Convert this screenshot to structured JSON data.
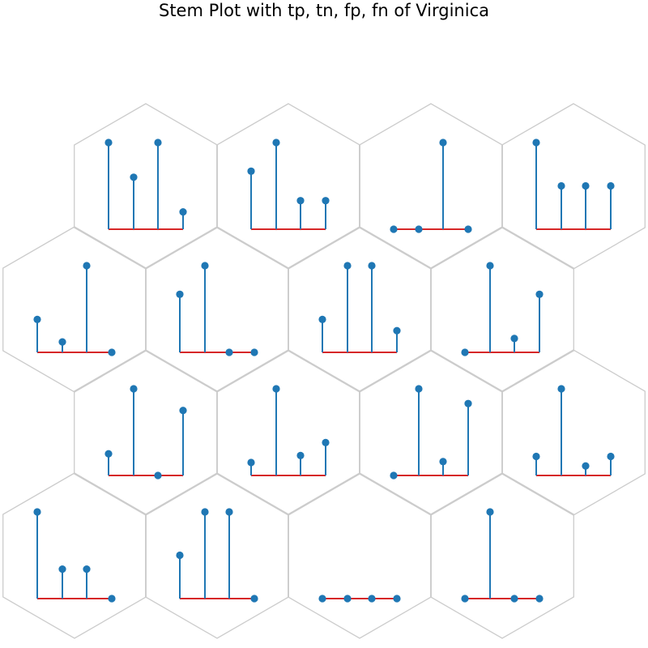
{
  "chart_data": {
    "type": "stem",
    "title": "Stem Plot with tp, tn, fp, fn of Virginica",
    "stem_color": "#1f77b4",
    "baseline_color": "#d62728",
    "hex_edge_color": "#cccccc",
    "points_per_cell": 4,
    "cells": [
      {
        "values": [
          1.0,
          0.6,
          1.0,
          0.2
        ]
      },
      {
        "values": [
          0.67,
          1.0,
          0.33,
          0.33
        ]
      },
      {
        "values": [
          0.0,
          0.0,
          1.0,
          0.0
        ]
      },
      {
        "values": [
          1.0,
          0.5,
          0.5,
          0.5
        ]
      },
      {
        "values": [
          0.38,
          0.12,
          1.0,
          0.0
        ]
      },
      {
        "values": [
          0.67,
          1.0,
          0.0,
          0.0
        ]
      },
      {
        "values": [
          0.38,
          1.0,
          1.0,
          0.25
        ]
      },
      {
        "values": [
          0.0,
          1.0,
          0.16,
          0.67
        ]
      },
      {
        "values": [
          0.25,
          1.0,
          0.0,
          0.75
        ]
      },
      {
        "values": [
          0.15,
          1.0,
          0.23,
          0.38
        ]
      },
      {
        "values": [
          0.0,
          1.0,
          0.16,
          0.83
        ]
      },
      {
        "values": [
          0.22,
          1.0,
          0.11,
          0.22
        ]
      },
      {
        "values": [
          1.0,
          0.34,
          0.34,
          0.0
        ]
      },
      {
        "values": [
          0.5,
          1.0,
          1.0,
          0.0
        ]
      },
      {
        "values": [
          0.0,
          0.0,
          0.0,
          0.0
        ]
      },
      {
        "values": [
          0.0,
          1.0,
          0.0,
          0.0
        ]
      }
    ]
  }
}
